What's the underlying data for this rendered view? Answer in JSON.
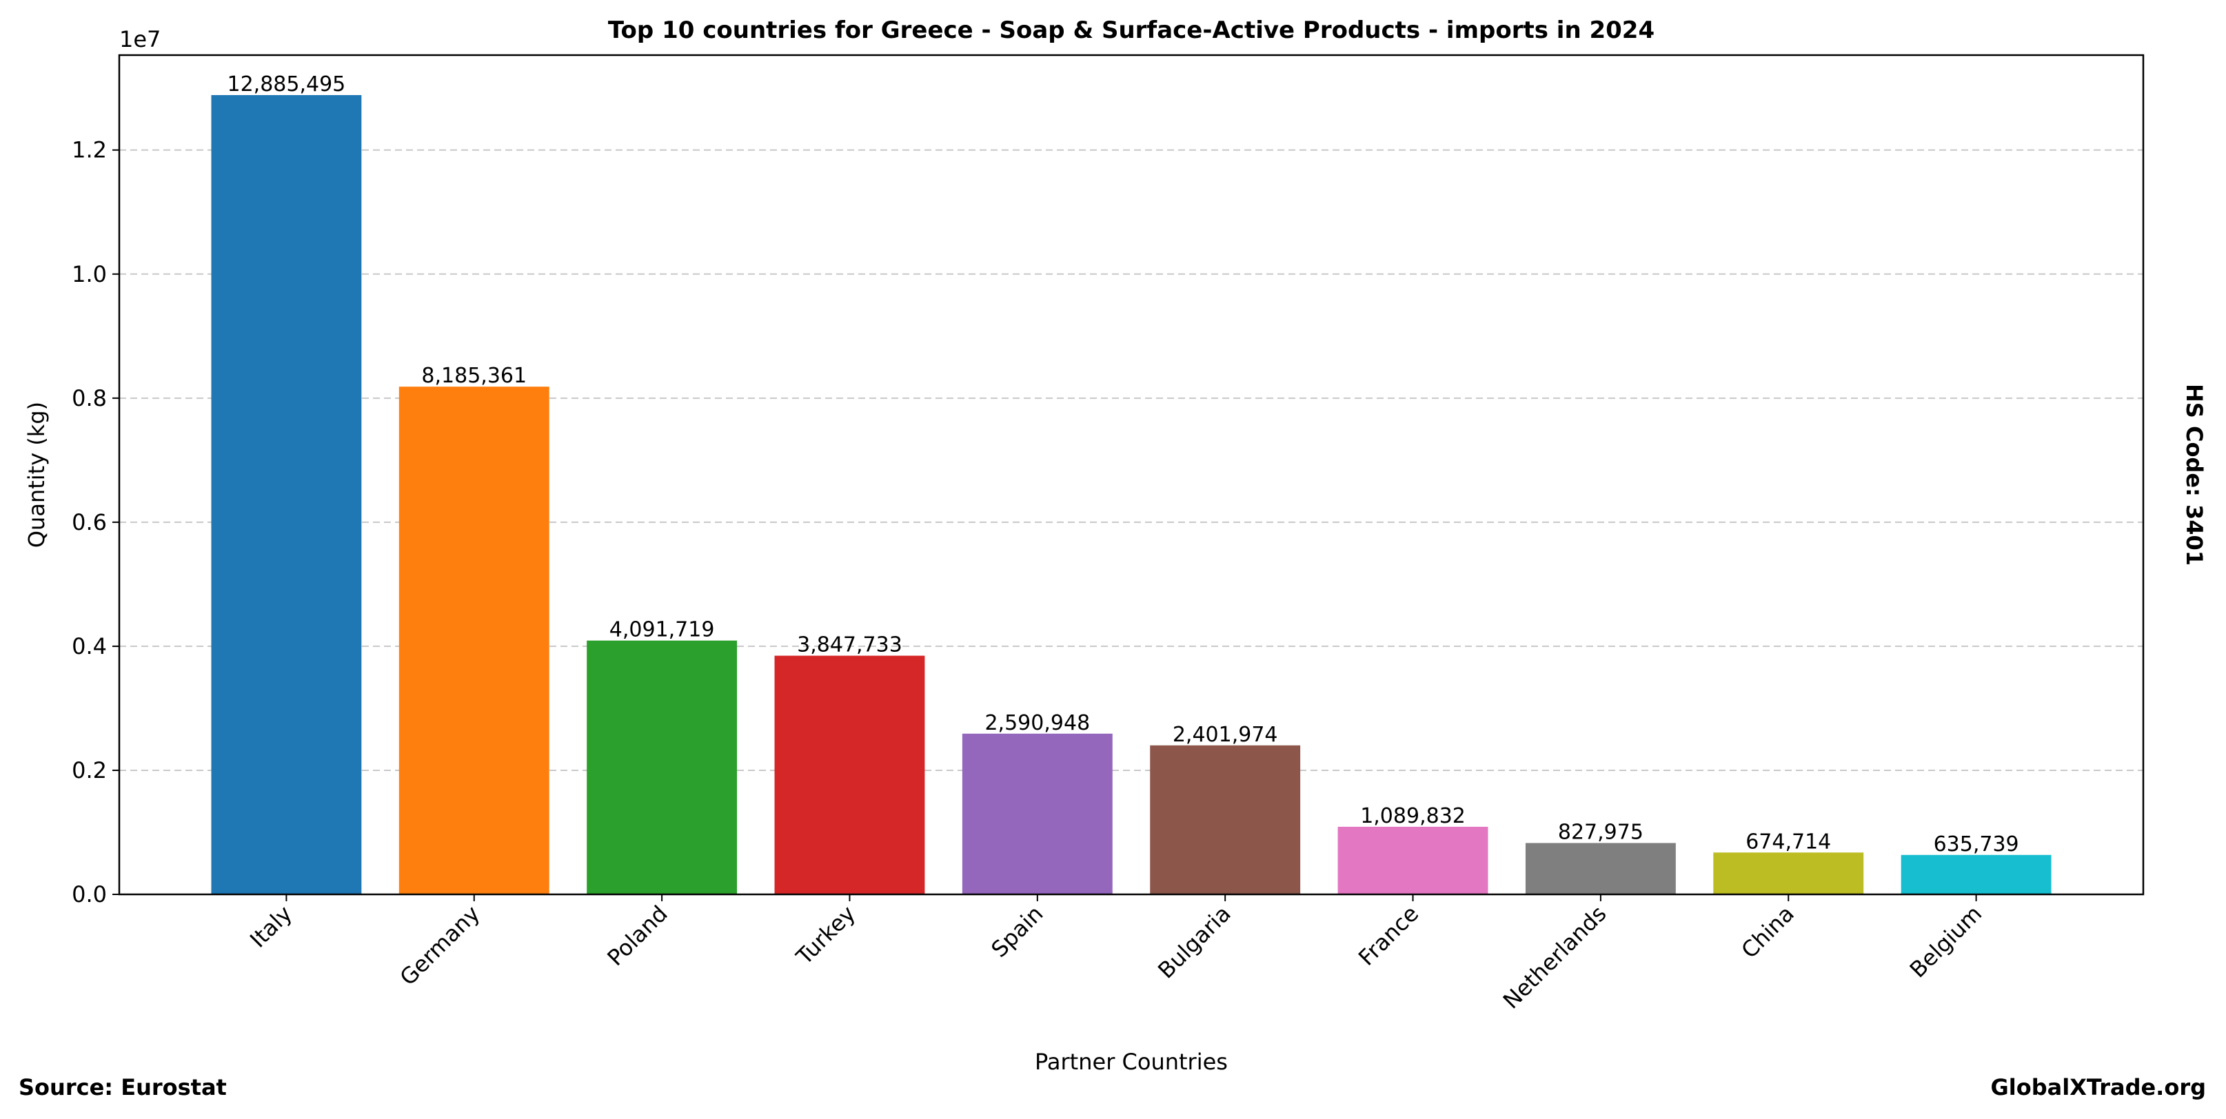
{
  "chart_data": {
    "type": "bar",
    "title": "Top 10 countries for Greece - Soap & Surface-Active Products - imports in 2024",
    "xlabel": "Partner Countries",
    "ylabel": "Quantity (kg)",
    "y_offset_label": "1e7",
    "ylim": [
      0,
      13530000
    ],
    "yticks": [
      0,
      2000000,
      4000000,
      6000000,
      8000000,
      10000000,
      12000000
    ],
    "ytick_labels": [
      "0.0",
      "0.2",
      "0.4",
      "0.6",
      "0.8",
      "1.0",
      "1.2"
    ],
    "grid": "y dashed",
    "categories": [
      "Italy",
      "Germany",
      "Poland",
      "Turkey",
      "Spain",
      "Bulgaria",
      "France",
      "Netherlands",
      "China",
      "Belgium"
    ],
    "values": [
      12885495,
      8185361,
      4091719,
      3847733,
      2590948,
      2401974,
      1089832,
      827975,
      674714,
      635739
    ],
    "value_labels": [
      "12,885,495",
      "8,185,361",
      "4,091,719",
      "3,847,733",
      "2,590,948",
      "2,401,974",
      "1,089,832",
      "827,975",
      "674,714",
      "635,739"
    ],
    "colors": [
      "#1f77b4",
      "#ff7f0e",
      "#2ca02c",
      "#d62728",
      "#9467bd",
      "#8c564b",
      "#e377c2",
      "#7f7f7f",
      "#bcbd22",
      "#17becf"
    ]
  },
  "annotations": {
    "source": "Source: Eurostat",
    "site": "GlobalXTrade.org",
    "hs_code": "HS Code: 3401"
  }
}
